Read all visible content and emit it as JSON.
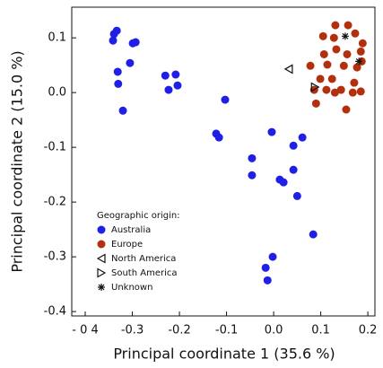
{
  "chart_data": {
    "type": "scatter",
    "x_label": "Principal coordinate 1 (35.6 %)",
    "y_label": "Principal coordinate 2 (15.0 %)",
    "xlim": [
      -0.4286,
      0.215
    ],
    "ylim": [
      -0.408,
      0.156
    ],
    "xticks": [
      {
        "value": -0.4,
        "label": "- 0 4"
      },
      -0.3,
      -0.2,
      -0.1,
      {
        "value": 0,
        "label": "0.0"
      },
      0.1,
      0.2
    ],
    "yticks": [
      -0.4,
      -0.3,
      -0.2,
      -0.1,
      {
        "value": 0,
        "label": "0.0"
      },
      0.1
    ],
    "legend_title": "Geographic origin:",
    "legend": "lower left",
    "series": [
      {
        "name": "Australia",
        "color": "#1f1fe6",
        "marker": "circle",
        "x": [
          -0.333,
          -0.339,
          -0.341,
          -0.299,
          -0.293,
          -0.305,
          -0.331,
          -0.33,
          -0.32,
          -0.23,
          -0.208,
          -0.223,
          -0.204,
          -0.103,
          -0.122,
          -0.116,
          -0.004,
          -0.046,
          -0.046,
          0.013,
          0.021,
          0.042,
          0.061,
          0.042,
          0.05,
          -0.002,
          -0.017,
          -0.013,
          0.084
        ],
        "y": [
          0.113,
          0.107,
          0.095,
          0.09,
          0.092,
          0.054,
          0.038,
          0.016,
          -0.033,
          0.031,
          0.033,
          0.005,
          0.013,
          -0.013,
          -0.075,
          -0.082,
          -0.072,
          -0.12,
          -0.151,
          -0.159,
          -0.164,
          -0.097,
          -0.082,
          -0.141,
          -0.189,
          -0.3,
          -0.32,
          -0.343,
          -0.259
        ]
      },
      {
        "name": "Europe",
        "color": "#b3300f",
        "marker": "circle",
        "x": [
          0.131,
          0.158,
          0.105,
          0.128,
          0.173,
          0.189,
          0.133,
          0.156,
          0.078,
          0.114,
          0.149,
          0.099,
          0.124,
          0.177,
          0.187,
          0.086,
          0.112,
          0.143,
          0.168,
          0.185,
          0.09,
          0.13,
          0.154,
          0.171,
          0.107,
          0.185
        ],
        "y": [
          0.123,
          0.123,
          0.103,
          0.1,
          0.108,
          0.09,
          0.079,
          0.07,
          0.049,
          0.051,
          0.049,
          0.025,
          0.025,
          0.046,
          0.057,
          0.005,
          0.005,
          0.005,
          0.0,
          0.002,
          -0.02,
          0.0,
          -0.031,
          0.018,
          0.07,
          0.075
        ]
      },
      {
        "name": "North America",
        "color": "#111111",
        "marker": "triangle-left",
        "x": [
          0.032
        ],
        "y": [
          0.043
        ]
      },
      {
        "name": "South America",
        "color": "#111111",
        "marker": "triangle-right",
        "x": [
          0.088
        ],
        "y": [
          0.01
        ]
      },
      {
        "name": "Unknown",
        "color": "#111111",
        "marker": "asterisk",
        "x": [
          0.152,
          0.181
        ],
        "y": [
          0.103,
          0.057
        ]
      }
    ]
  }
}
